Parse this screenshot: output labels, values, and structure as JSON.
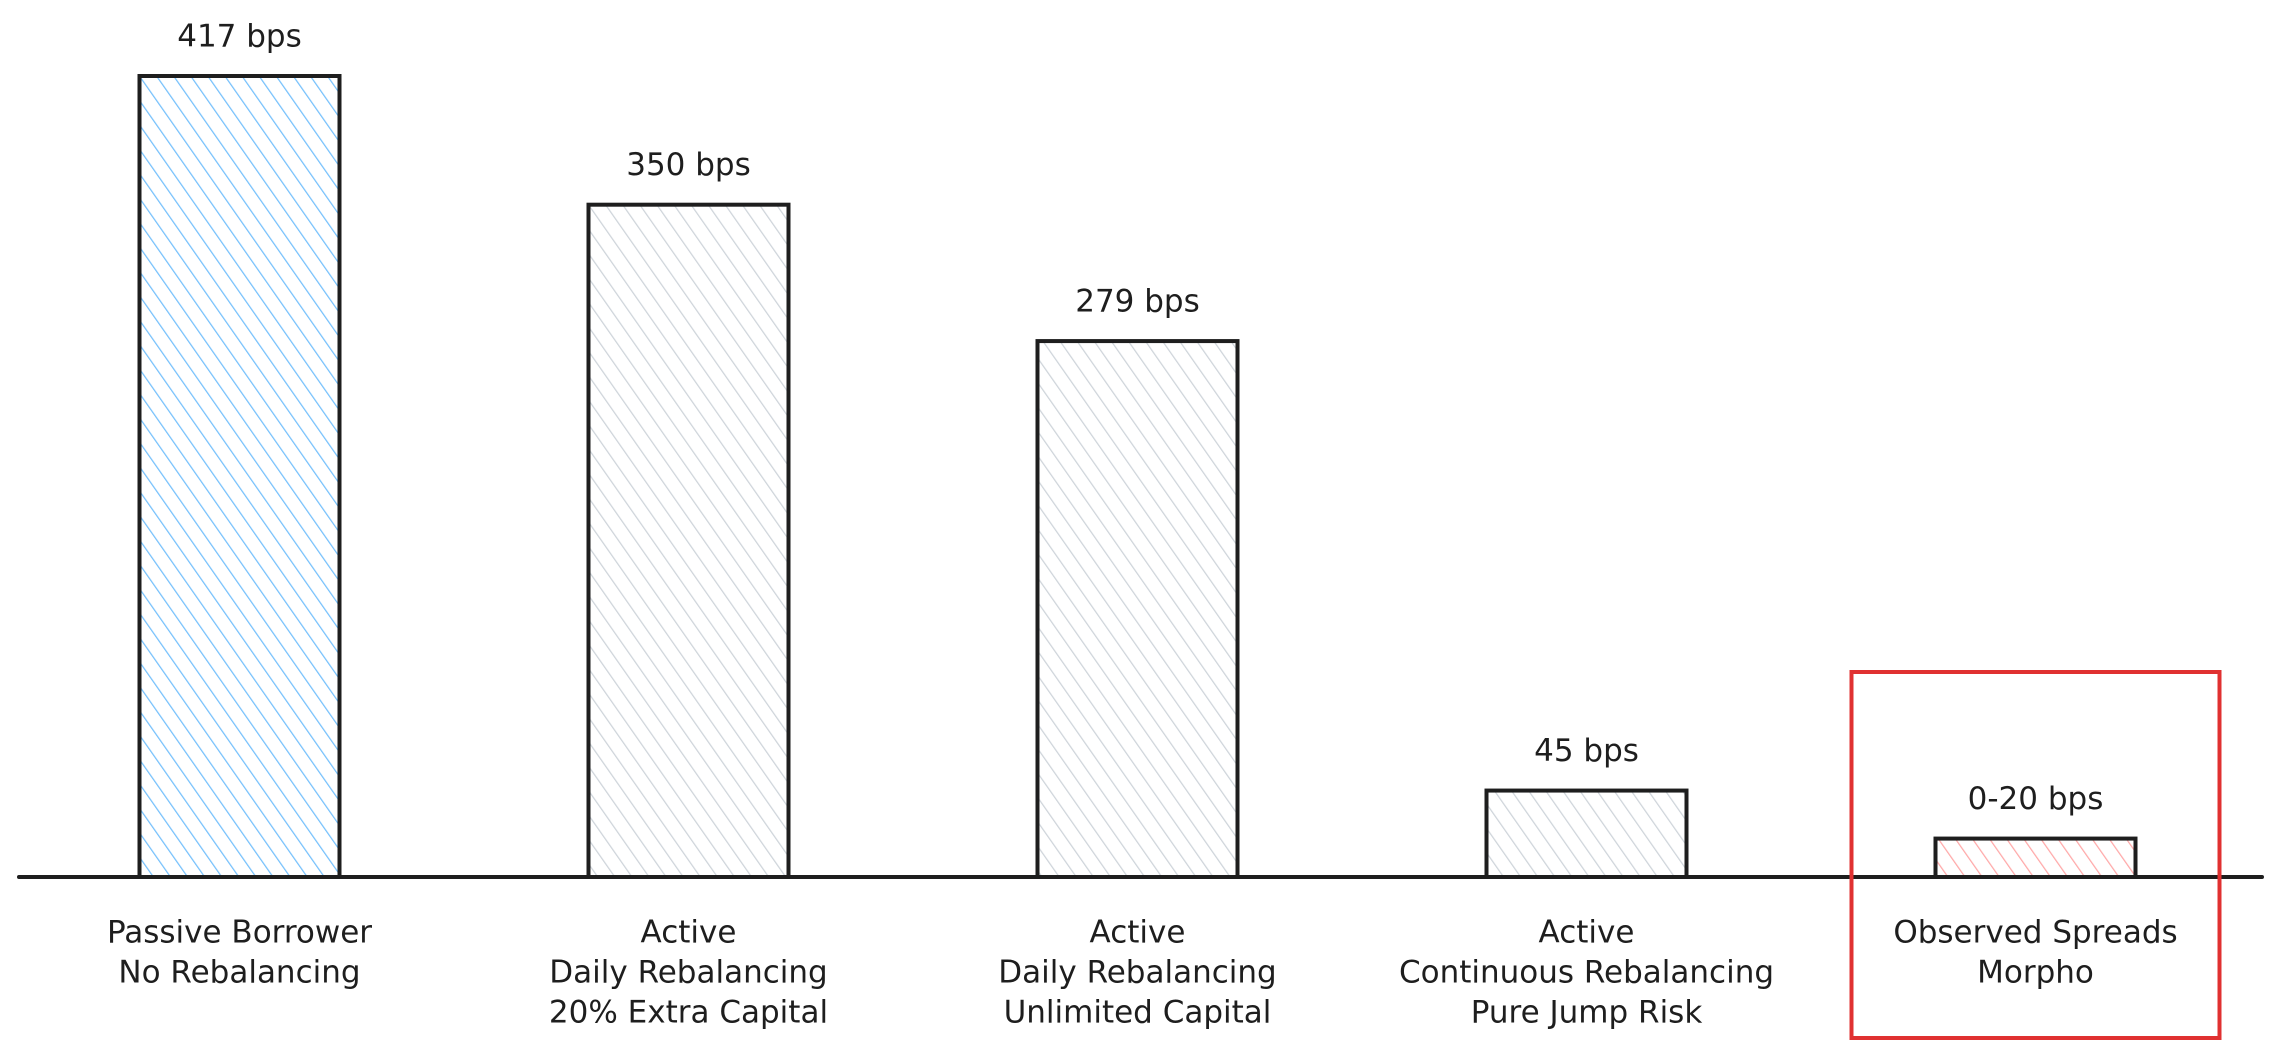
{
  "chart_data": {
    "type": "bar",
    "categories": [
      [
        "Passive Borrower",
        "No Rebalancing"
      ],
      [
        "Active",
        "Daily Rebalancing",
        "20% Extra Capital"
      ],
      [
        "Active",
        "Daily Rebalancing",
        "Unlimited Capital"
      ],
      [
        "Active",
        "Continuous Rebalancing",
        "Pure Jump Risk"
      ],
      [
        "Observed Spreads",
        "Morpho"
      ]
    ],
    "values": [
      417,
      350,
      279,
      45,
      20
    ],
    "value_labels": [
      "417 bps",
      "350 bps",
      "279 bps",
      "45 bps",
      "0-20 bps"
    ],
    "colors": [
      "#74c0fc",
      "#ced4da",
      "#ced4da",
      "#ced4da",
      "#ffa8a8"
    ],
    "highlight_color": "#e03131"
  }
}
